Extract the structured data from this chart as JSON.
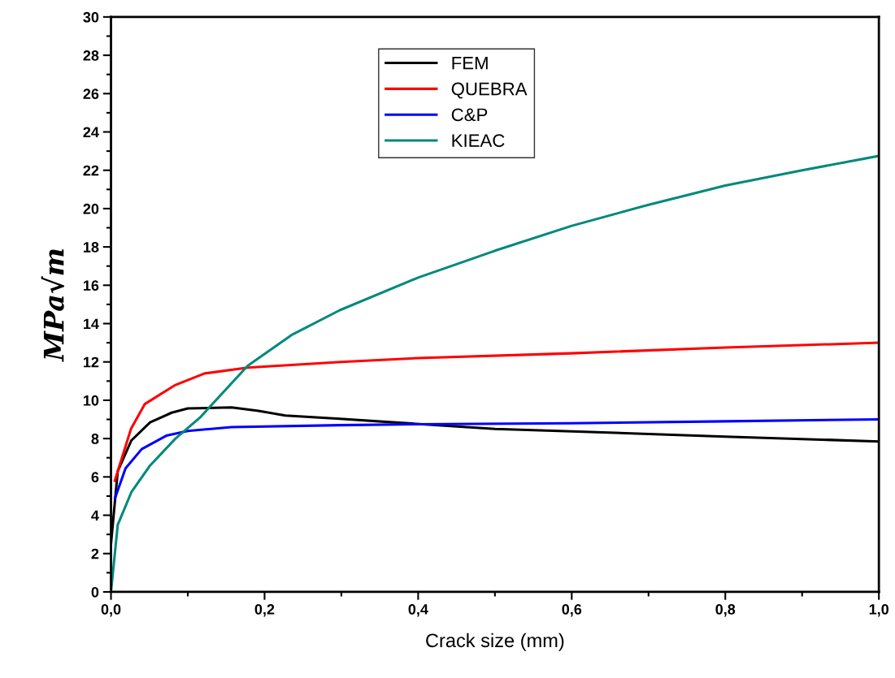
{
  "chart_data": {
    "type": "line",
    "xlabel": "Crack size (mm)",
    "ylabel": "MPa√m",
    "xlim": [
      0,
      1
    ],
    "ylim": [
      0,
      30
    ],
    "xticks": [
      {
        "value": 0,
        "label": "0,0"
      },
      {
        "value": 0.2,
        "label": "0,2"
      },
      {
        "value": 0.4,
        "label": "0,4"
      },
      {
        "value": 0.6,
        "label": "0,6"
      },
      {
        "value": 0.8,
        "label": "0,8"
      },
      {
        "value": 1,
        "label": "1,0"
      }
    ],
    "yticks": [
      0,
      2,
      4,
      6,
      8,
      10,
      12,
      14,
      16,
      18,
      20,
      22,
      24,
      26,
      28,
      30
    ],
    "legend": "top",
    "grid": false,
    "marker": "none",
    "line_style": "solid",
    "series": [
      {
        "name": "FEM",
        "color": "#000000",
        "x": [
          0,
          0.0088,
          0.0265,
          0.051,
          0.079,
          0.1,
          0.157,
          0.192,
          0.227,
          0.298,
          0.5,
          0.6,
          0.8,
          1.0
        ],
        "values": [
          2.5,
          6.3,
          7.9,
          8.85,
          9.35,
          9.57,
          9.63,
          9.45,
          9.2,
          9.03,
          8.5,
          8.38,
          8.1,
          7.85
        ]
      },
      {
        "name": "QUEBRA",
        "color": "#ff0000",
        "x": [
          0.005,
          0.026,
          0.044,
          0.084,
          0.122,
          0.178,
          0.3,
          0.4,
          0.6,
          0.8,
          1.0
        ],
        "values": [
          5.8,
          8.5,
          9.8,
          10.8,
          11.4,
          11.7,
          12.0,
          12.2,
          12.45,
          12.75,
          13.0
        ]
      },
      {
        "name": "C&P",
        "color": "#0000ff",
        "x": [
          0.0053,
          0.019,
          0.04,
          0.072,
          0.1,
          0.157,
          0.298,
          0.4,
          0.6,
          0.8,
          1.0
        ],
        "values": [
          4.9,
          6.45,
          7.45,
          8.15,
          8.4,
          8.6,
          8.7,
          8.75,
          8.8,
          8.9,
          9.0
        ]
      },
      {
        "name": "KIEAC",
        "color": "#00897b",
        "x": [
          0,
          0.0088,
          0.0265,
          0.051,
          0.084,
          0.116,
          0.178,
          0.235,
          0.298,
          0.4,
          0.5,
          0.6,
          0.7,
          0.8,
          0.9,
          1.0
        ],
        "values": [
          0,
          3.5,
          5.2,
          6.6,
          8.0,
          9.1,
          11.8,
          13.4,
          14.7,
          16.4,
          17.8,
          19.1,
          20.2,
          21.2,
          22.0,
          22.75
        ]
      }
    ]
  }
}
